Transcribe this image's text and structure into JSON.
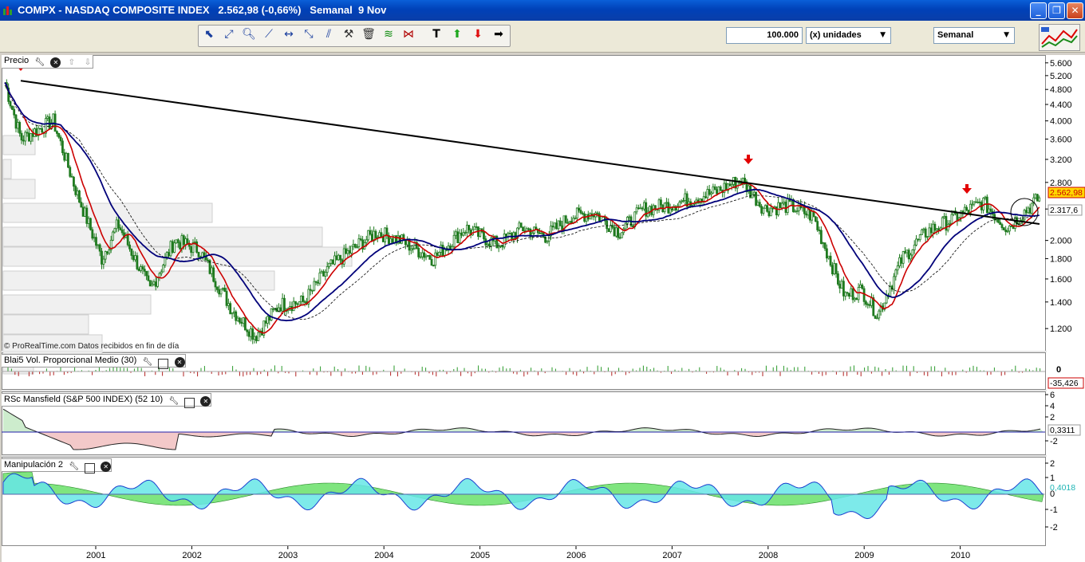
{
  "window": {
    "title": "COMPX - NASDAQ COMPOSITE INDEX",
    "price_info": "2.562,98 (-0,66%)",
    "period_info": "Semanal  9 Nov",
    "buttons": {
      "minimize": "_",
      "restore": "❐",
      "close": "✕"
    }
  },
  "toolbar": {
    "tools": [
      {
        "name": "pointer-tool",
        "icon": "arrow-pointer-icon"
      },
      {
        "name": "crosshair-tool",
        "icon": "crosshair-icon"
      },
      {
        "name": "zoom-tool",
        "icon": "magnifier-icon"
      },
      {
        "name": "trendline-tool",
        "icon": "trendline-icon"
      },
      {
        "name": "horizontal-line-tool",
        "icon": "horizontal-line-icon"
      },
      {
        "name": "channel-tool",
        "icon": "channel-icon"
      },
      {
        "name": "fan-tool",
        "icon": "fan-icon"
      },
      {
        "name": "properties-tool",
        "icon": "tools-icon"
      },
      {
        "name": "delete-tool",
        "icon": "trash-icon"
      },
      {
        "name": "fibonacci-tool",
        "icon": "fibonacci-icon"
      },
      {
        "name": "triangle-tool",
        "icon": "triangle-icon"
      },
      {
        "name": "text-tool",
        "icon": "text-icon"
      },
      {
        "name": "up-arrow-tool",
        "icon": "green-up-arrow-icon"
      },
      {
        "name": "down-arrow-tool",
        "icon": "red-down-arrow-icon"
      },
      {
        "name": "right-arrow-tool",
        "icon": "black-right-arrow-icon"
      }
    ],
    "quantity_value": "100.000",
    "units_selected": "(x) unidades",
    "period_selected": "Semanal",
    "chart_config_icon": "chart-settings-icon"
  },
  "panels": {
    "price": {
      "label": "Precio",
      "footer": "© ProRealTime.com  Datos recibidos en fin de día",
      "last_price": "2.562,98",
      "ma_value": "2.317,6",
      "y_ticks": [
        "5.600",
        "5.200",
        "4.800",
        "4.400",
        "4.000",
        "3.600",
        "3.200",
        "2.800",
        "2.400",
        "2.000",
        "1.800",
        "1.600",
        "1.400",
        "1.200"
      ]
    },
    "volume": {
      "label": "Blai5 Vol. Proporcional Medio (30)",
      "zero_label": "0",
      "value": "-35,426"
    },
    "rsc": {
      "label": "RSc Mansfield (S&P 500 INDEX) (52 10)",
      "y_ticks": [
        "6",
        "4",
        "2",
        "-2"
      ],
      "value": "0,3311"
    },
    "manip": {
      "label": "Manipulación 2",
      "y_ticks": [
        "2",
        "1",
        "-1",
        "-2"
      ],
      "value": "0,4018",
      "zero_label": "0"
    }
  },
  "x_axis": {
    "years": [
      "2001",
      "2002",
      "2003",
      "2004",
      "2005",
      "2006",
      "2007",
      "2008",
      "2009",
      "2010"
    ]
  },
  "colors": {
    "price_up": "#1f7a1f",
    "ma_short": "#cc0000",
    "ma_long": "#00007a",
    "trendline": "#000000",
    "signal_arrow": "#e30000",
    "rsc_positive": "#cdeccd",
    "rsc_negative": "#f3c9c9",
    "manip_fill_a": "#66e6e6",
    "manip_fill_b": "#7fe57f",
    "value_box": "#ffd700"
  },
  "chart_data": {
    "type": "candlestick",
    "x": [
      "2000-03",
      "2000-05",
      "2000-09",
      "2000-12",
      "2001-03",
      "2001-05",
      "2001-09",
      "2001-12",
      "2002-03",
      "2002-07",
      "2002-10",
      "2003-01",
      "2003-04",
      "2003-07",
      "2003-10",
      "2004-01",
      "2004-04",
      "2004-08",
      "2004-12",
      "2005-04",
      "2005-07",
      "2005-10",
      "2006-01",
      "2006-04",
      "2006-07",
      "2006-10",
      "2007-01",
      "2007-04",
      "2007-07",
      "2007-10",
      "2008-01",
      "2008-04",
      "2008-07",
      "2008-10",
      "2008-11",
      "2009-01",
      "2009-03",
      "2009-06",
      "2009-09",
      "2009-12",
      "2010-04",
      "2010-07",
      "2010-09",
      "2010-11"
    ],
    "close": [
      5000,
      3600,
      4000,
      2600,
      1800,
      2200,
      1500,
      2000,
      1900,
      1350,
      1150,
      1380,
      1400,
      1700,
      1900,
      2100,
      2000,
      1800,
      2150,
      1950,
      2150,
      2050,
      2300,
      2350,
      2100,
      2400,
      2450,
      2550,
      2650,
      2850,
      2400,
      2450,
      2300,
      1600,
      1450,
      1500,
      1300,
      1800,
      2100,
      2250,
      2500,
      2150,
      2350,
      2563
    ],
    "ma_short_last": 2250,
    "ma_long_last": 2317.6,
    "trendline": {
      "start": [
        "2000-03",
        5050
      ],
      "end": [
        "2010-11",
        2200
      ]
    },
    "signal_arrows": [
      "2000-03",
      "2007-10",
      "2010-01"
    ],
    "volume_last": -35.426,
    "rsc_last": 0.3311,
    "manip_last": 0.4018,
    "ylim": [
      1100,
      5700
    ],
    "y_scale": "log"
  }
}
